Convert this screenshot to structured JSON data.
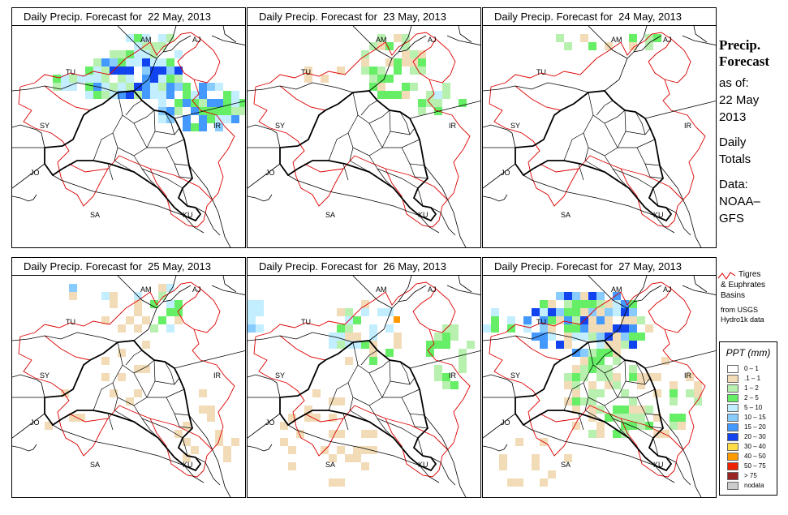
{
  "panel_title_prefix": "Daily Precip. Forecast for",
  "panels": [
    {
      "date": "22 May, 2013"
    },
    {
      "date": "23 May, 2013"
    },
    {
      "date": "24 May, 2013"
    },
    {
      "date": "25 May, 2013"
    },
    {
      "date": "26 May, 2013"
    },
    {
      "date": "27 May, 2013"
    }
  ],
  "map_labels": [
    "AM",
    "AJ",
    "TU",
    "SY",
    "IR",
    "JO",
    "SA",
    "KU"
  ],
  "side_title": [
    "Precip.",
    "Forecast"
  ],
  "side_text": [
    "as of:",
    "22 May",
    "2013",
    "",
    "Daily",
    "Totals",
    "",
    "Data:",
    "NOAA–",
    "GFS"
  ],
  "basin_legend": {
    "line1": "Tigres",
    "line2": "& Euphrates",
    "line3": "Basins",
    "line4": "from USGS",
    "line5": "Hydro1k data",
    "color": "#dd0000"
  },
  "ppt_legend": {
    "title": "PPT (mm)",
    "items": [
      {
        "label": "0 – 1",
        "color": "#ffffff"
      },
      {
        "label": ".1 – 1",
        "color": "#f2dcb8"
      },
      {
        "label": "1 – 2",
        "color": "#b8f0b0"
      },
      {
        "label": "2 – 5",
        "color": "#66ee66"
      },
      {
        "label": "5 – 10",
        "color": "#c2eeff"
      },
      {
        "label": "10 – 15",
        "color": "#88ccff"
      },
      {
        "label": "15 – 20",
        "color": "#4499ff"
      },
      {
        "label": "20 – 30",
        "color": "#1144ee"
      },
      {
        "label": "30 – 40",
        "color": "#ffdd44"
      },
      {
        "label": "40 – 50",
        "color": "#ff9900"
      },
      {
        "label": "50 – 75",
        "color": "#ee2200"
      },
      {
        "label": "> 75",
        "color": "#992222"
      },
      {
        "label": "nodata",
        "color": "#cccccc"
      }
    ]
  }
}
